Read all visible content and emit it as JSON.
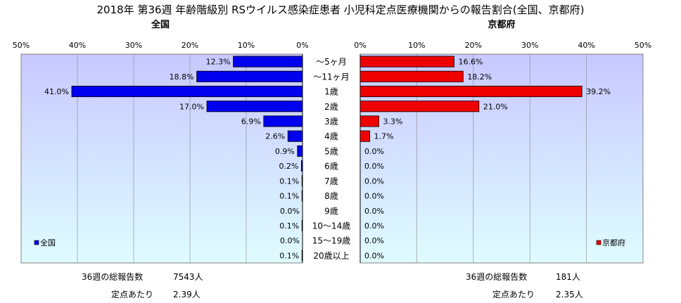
{
  "title": "2018年 第36週 年齢階級別 RSウイルス感染症患者 小児科定点医療機関からの報告割合(全国、京都府)",
  "chart_data": [
    {
      "type": "bar",
      "orientation": "horizontal",
      "direction": "right-to-left",
      "title": "全国",
      "categories": [
        "～5ヶ月",
        "～11ヶ月",
        "1歳",
        "2歳",
        "3歳",
        "4歳",
        "5歳",
        "6歳",
        "7歳",
        "8歳",
        "9歳",
        "10～14歳",
        "15～19歳",
        "20歳以上"
      ],
      "series": [
        {
          "name": "全国",
          "values": [
            12.3,
            18.8,
            41.0,
            17.0,
            6.9,
            2.6,
            0.9,
            0.2,
            0.1,
            0.1,
            0.0,
            0.1,
            0.0,
            0.1
          ]
        }
      ],
      "data_labels": [
        "12.3%",
        "18.8%",
        "41.0%",
        "17.0%",
        "6.9%",
        "2.6%",
        "0.9%",
        "0.2%",
        "0.1%",
        "0.1%",
        "0.0%",
        "0.1%",
        "0.0%",
        "0.1%"
      ],
      "xlim": [
        0,
        50
      ],
      "xticks": [
        "50%",
        "40%",
        "30%",
        "20%",
        "10%",
        "0%"
      ],
      "grid": true,
      "legend": "bottom-left",
      "bar_color": "#0000ee",
      "plot_bg_top": "#c8c8ff",
      "plot_bg_bottom": "#dffcff"
    },
    {
      "type": "bar",
      "orientation": "horizontal",
      "direction": "left-to-right",
      "title": "京都府",
      "categories": [
        "～5ヶ月",
        "～11ヶ月",
        "1歳",
        "2歳",
        "3歳",
        "4歳",
        "5歳",
        "6歳",
        "7歳",
        "8歳",
        "9歳",
        "10～14歳",
        "15～19歳",
        "20歳以上"
      ],
      "series": [
        {
          "name": "京都府",
          "values": [
            16.6,
            18.2,
            39.2,
            21.0,
            3.3,
            1.7,
            0.0,
            0.0,
            0.0,
            0.0,
            0.0,
            0.0,
            0.0,
            0.0
          ]
        }
      ],
      "data_labels": [
        "16.6%",
        "18.2%",
        "39.2%",
        "21.0%",
        "3.3%",
        "1.7%",
        "0.0%",
        "0.0%",
        "0.0%",
        "0.0%",
        "0.0%",
        "0.0%",
        "0.0%",
        "0.0%"
      ],
      "xlim": [
        0,
        50
      ],
      "xticks": [
        "0%",
        "10%",
        "20%",
        "30%",
        "40%",
        "50%"
      ],
      "grid": true,
      "legend": "bottom-right",
      "bar_color": "#ee0000",
      "plot_bg_top": "#c8c8ff",
      "plot_bg_bottom": "#dffcff"
    }
  ],
  "stats": {
    "national": {
      "total_label": "36週の総報告数",
      "total_value": "7543人",
      "per_label": "定点あたり",
      "per_value": "2.39人"
    },
    "kyoto": {
      "total_label": "36週の総報告数",
      "total_value": "181人",
      "per_label": "定点あたり",
      "per_value": "2.35人"
    }
  }
}
